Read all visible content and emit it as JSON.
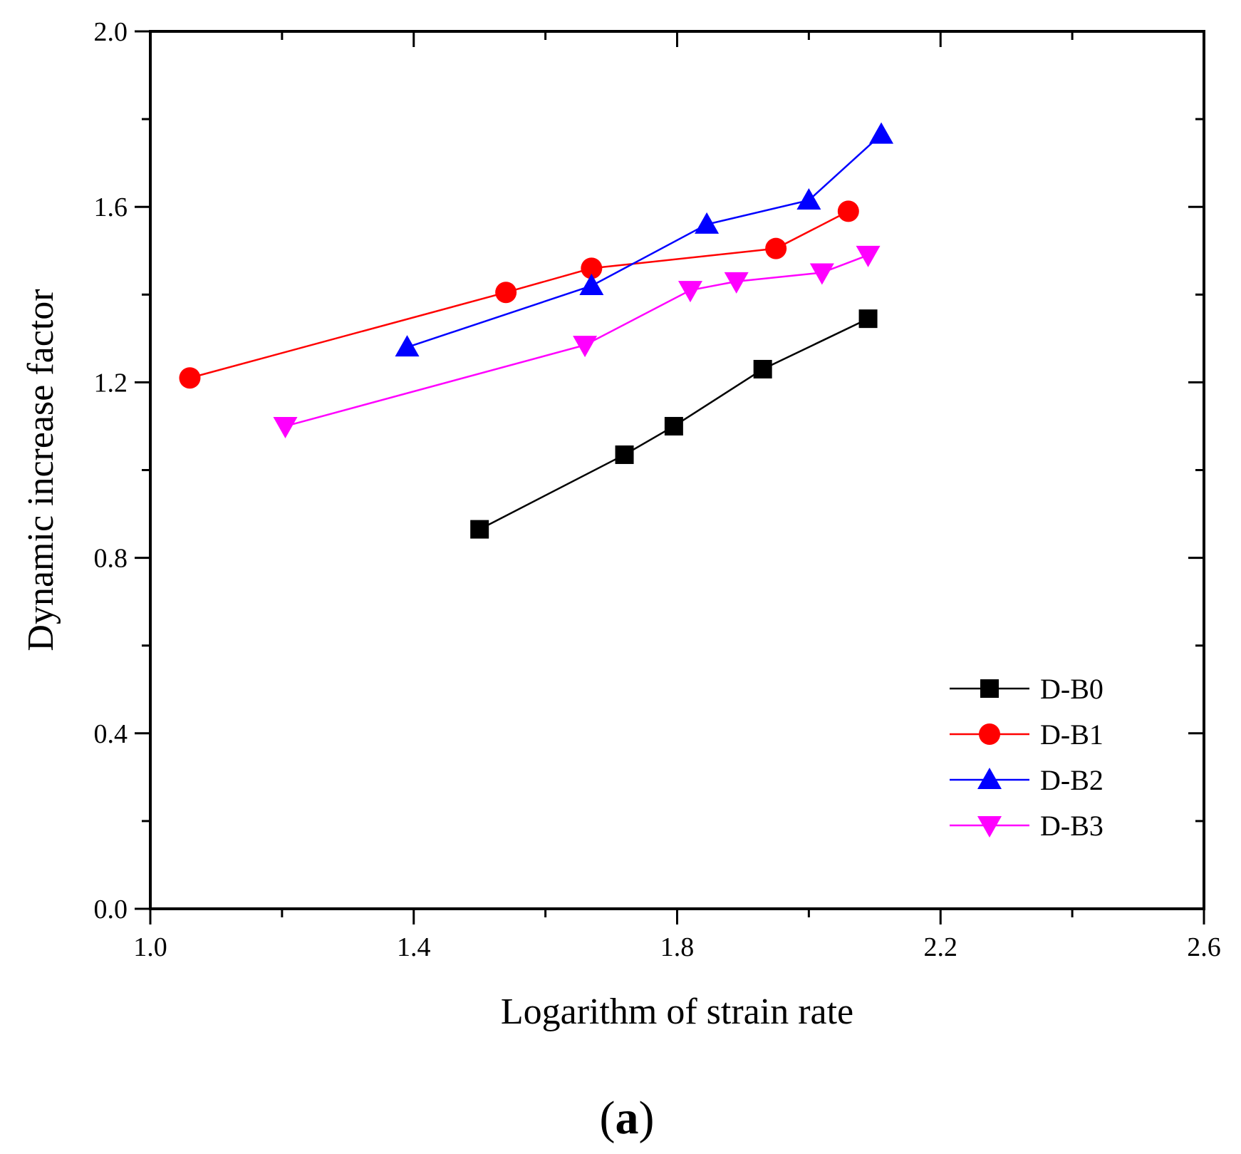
{
  "chart_data": {
    "type": "line",
    "title": "",
    "xlabel": "Logarithm of strain rate",
    "ylabel": "Dynamic increase factor",
    "xlim": [
      1.0,
      2.6
    ],
    "ylim": [
      0.0,
      2.0
    ],
    "x_major_ticks": [
      1.0,
      1.4,
      1.8,
      2.2,
      2.6
    ],
    "x_tick_labels": [
      "1.0",
      "1.4",
      "1.8",
      "2.2",
      "2.6"
    ],
    "y_major_ticks": [
      0.0,
      0.4,
      0.8,
      1.2,
      1.6,
      2.0
    ],
    "y_tick_labels": [
      "0.0",
      "0.4",
      "0.8",
      "1.2",
      "1.6",
      "2.0"
    ],
    "x_minor_step": 0.2,
    "y_minor_step": 0.2,
    "grid": false,
    "legend_position": "bottom-right",
    "panel_label_prefix": "(",
    "panel_label_letter": "a",
    "panel_label_suffix": ")",
    "series": [
      {
        "name": "D-B0",
        "color": "#000000",
        "marker": "square",
        "x": [
          1.5,
          1.72,
          1.795,
          1.93,
          2.09
        ],
        "y": [
          0.865,
          1.035,
          1.1,
          1.23,
          1.345
        ]
      },
      {
        "name": "D-B1",
        "color": "#ff0000",
        "marker": "circle",
        "x": [
          1.06,
          1.54,
          1.67,
          1.95,
          2.06
        ],
        "y": [
          1.21,
          1.405,
          1.46,
          1.505,
          1.59
        ]
      },
      {
        "name": "D-B2",
        "color": "#0000ff",
        "marker": "triangle-up",
        "x": [
          1.39,
          1.67,
          1.845,
          2.0,
          2.11
        ],
        "y": [
          1.28,
          1.42,
          1.56,
          1.615,
          1.765
        ]
      },
      {
        "name": "D-B3",
        "color": "#ff00ff",
        "marker": "triangle-down",
        "x": [
          1.205,
          1.66,
          1.82,
          1.89,
          2.02,
          2.09
        ],
        "y": [
          1.1,
          1.285,
          1.41,
          1.43,
          1.45,
          1.49
        ]
      }
    ]
  }
}
